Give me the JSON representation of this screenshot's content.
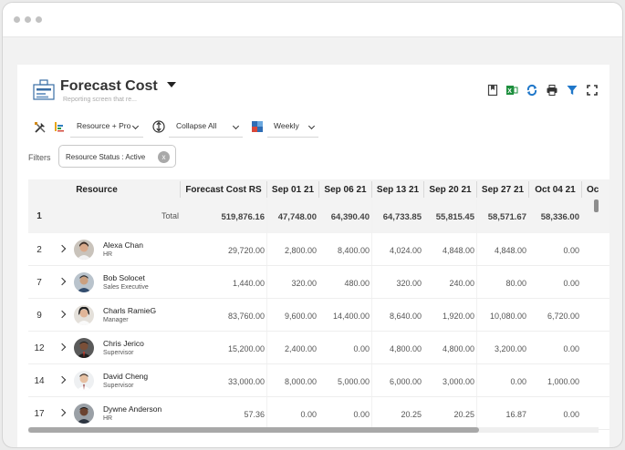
{
  "page": {
    "title": "Forecast Cost",
    "subtitle": "Reporting screen that re...",
    "filters_label": "Filters",
    "filter_chip": "Resource Status : Active"
  },
  "toolbar": {
    "group_by": "Resource + Pro",
    "collapse": "Collapse All",
    "period": "Weekly"
  },
  "top_icons": [
    "bookmark-icon",
    "excel-export-icon",
    "refresh-icon",
    "print-icon",
    "filter-icon",
    "fullscreen-icon"
  ],
  "grid": {
    "headers": [
      "Resource",
      "Forecast Cost RS",
      "Sep 01 21",
      "Sep 06 21",
      "Sep 13 21",
      "Sep 20 21",
      "Sep 27 21",
      "Oct 04 21",
      "Oc"
    ],
    "total": {
      "num": "1",
      "label": "Total",
      "values": [
        "519,876.16",
        "47,748.00",
        "64,390.40",
        "64,733.85",
        "55,815.45",
        "58,571.67",
        "58,336.00"
      ]
    },
    "rows": [
      {
        "num": "2",
        "name": "Alexa Chan",
        "role": "HR",
        "values": [
          "29,720.00",
          "2,800.00",
          "8,400.00",
          "4,024.00",
          "4,848.00",
          "4,848.00",
          "0.00"
        ]
      },
      {
        "num": "7",
        "name": "Bob Solocet",
        "role": "Sales Executive",
        "values": [
          "1,440.00",
          "320.00",
          "480.00",
          "320.00",
          "240.00",
          "80.00",
          "0.00"
        ]
      },
      {
        "num": "9",
        "name": "Charls RamieG",
        "role": "Manager",
        "values": [
          "83,760.00",
          "9,600.00",
          "14,400.00",
          "8,640.00",
          "1,920.00",
          "10,080.00",
          "6,720.00"
        ]
      },
      {
        "num": "12",
        "name": "Chris Jerico",
        "role": "Supervisor",
        "values": [
          "15,200.00",
          "2,400.00",
          "0.00",
          "4,800.00",
          "4,800.00",
          "3,200.00",
          "0.00"
        ]
      },
      {
        "num": "14",
        "name": "David Cheng",
        "role": "Supervisor",
        "values": [
          "33,000.00",
          "8,000.00",
          "5,000.00",
          "6,000.00",
          "3,000.00",
          "0.00",
          "1,000.00"
        ]
      },
      {
        "num": "17",
        "name": "Dywne Anderson",
        "role": "HR",
        "values": [
          "57.36",
          "0.00",
          "0.00",
          "20.25",
          "20.25",
          "16.87",
          "0.00"
        ]
      }
    ]
  },
  "colors": {
    "header_bg": "#f3f3f3",
    "excel_green": "#1e8f3e",
    "accent_blue": "#1f77c9"
  }
}
